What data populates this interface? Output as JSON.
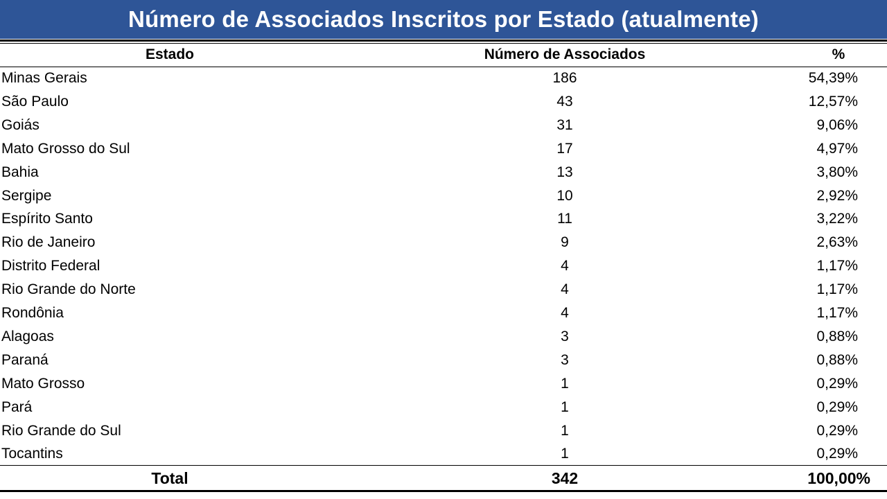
{
  "title": "Número de Associados Inscritos por Estado (atualmente)",
  "colors": {
    "title_bar": "#2e5597",
    "title_text": "#ffffff"
  },
  "table": {
    "headers": {
      "state": "Estado",
      "count": "Número de Associados",
      "percent": "%"
    },
    "rows": [
      {
        "state": "Minas Gerais",
        "count": "186",
        "percent": "54,39%"
      },
      {
        "state": "São Paulo",
        "count": "43",
        "percent": "12,57%"
      },
      {
        "state": "Goiás",
        "count": "31",
        "percent": "9,06%"
      },
      {
        "state": "Mato Grosso do Sul",
        "count": "17",
        "percent": "4,97%"
      },
      {
        "state": "Bahia",
        "count": "13",
        "percent": "3,80%"
      },
      {
        "state": "Sergipe",
        "count": "10",
        "percent": "2,92%"
      },
      {
        "state": "Espírito Santo",
        "count": "11",
        "percent": "3,22%"
      },
      {
        "state": "Rio de Janeiro",
        "count": "9",
        "percent": "2,63%"
      },
      {
        "state": "Distrito Federal",
        "count": "4",
        "percent": "1,17%"
      },
      {
        "state": "Rio Grande do Norte",
        "count": "4",
        "percent": "1,17%"
      },
      {
        "state": "Rondônia",
        "count": "4",
        "percent": "1,17%"
      },
      {
        "state": "Alagoas",
        "count": "3",
        "percent": "0,88%"
      },
      {
        "state": "Paraná",
        "count": "3",
        "percent": "0,88%"
      },
      {
        "state": "Mato Grosso",
        "count": "1",
        "percent": "0,29%"
      },
      {
        "state": "Pará",
        "count": "1",
        "percent": "0,29%"
      },
      {
        "state": "Rio Grande do Sul",
        "count": "1",
        "percent": "0,29%"
      },
      {
        "state": "Tocantins",
        "count": "1",
        "percent": "0,29%"
      }
    ],
    "total": {
      "label": "Total",
      "count": "342",
      "percent": "100,00%"
    }
  }
}
